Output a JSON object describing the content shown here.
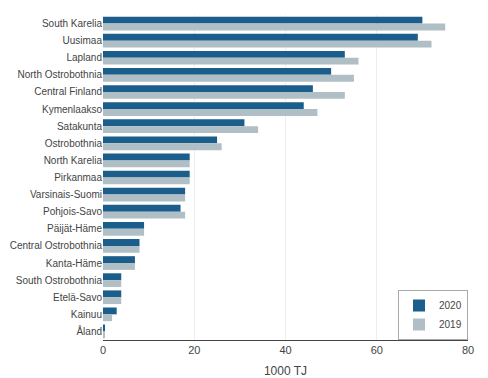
{
  "chart_data": {
    "type": "bar",
    "orientation": "horizontal",
    "categories": [
      "South Karelia",
      "Uusimaa",
      "Lapland",
      "North Ostrobothnia",
      "Central Finland",
      "Kymenlaakso",
      "Satakunta",
      "Ostrobothnia",
      "North Karelia",
      "Pirkanmaa",
      "Varsinais-Suomi",
      "Pohjois-Savo",
      "Päijät-Häme",
      "Central Ostrobothnia",
      "Kanta-Häme",
      "South Ostrobothnia",
      "Etelä-Savo",
      "Kainuu",
      "Åland"
    ],
    "series": [
      {
        "name": "2020",
        "color": "#1b5e8b",
        "values": [
          70,
          69,
          53,
          50,
          46,
          44,
          31,
          25,
          19,
          19,
          18,
          17,
          9,
          8,
          7,
          4,
          4,
          3,
          0.3
        ]
      },
      {
        "name": "2019",
        "color": "#b0bec5",
        "values": [
          75,
          72,
          56,
          55,
          53,
          47,
          34,
          26,
          19,
          19,
          18,
          18,
          9,
          8,
          7,
          4,
          4,
          2,
          0.3
        ]
      }
    ],
    "xlabel": "1000 TJ",
    "xlim": [
      0,
      80
    ],
    "xticks": [
      0,
      20,
      40,
      60,
      80
    ],
    "grid": true,
    "legend": "lower right"
  }
}
